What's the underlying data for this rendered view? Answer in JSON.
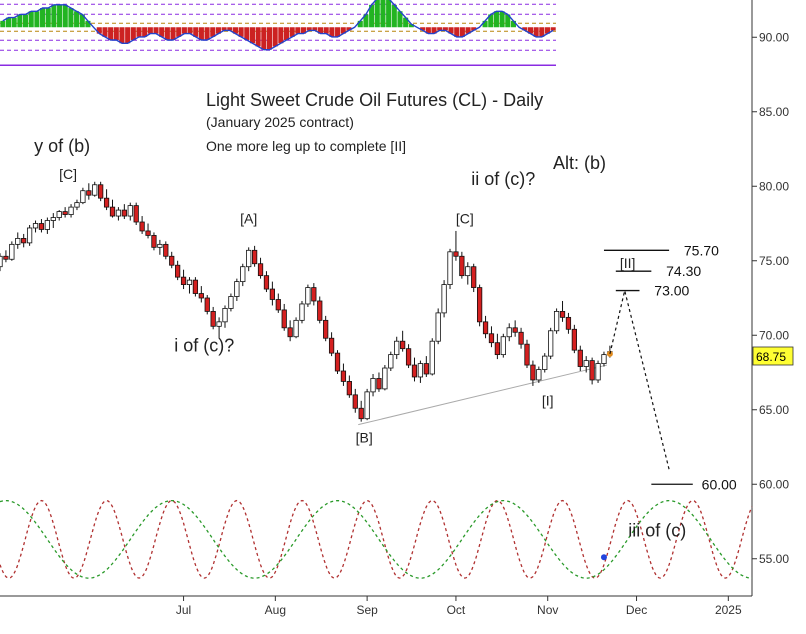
{
  "chart_data": {
    "type": "candlestick",
    "title": "Light Sweet Crude Oil Futures (CL) - Daily",
    "subtitle": "(January 2025 contract)",
    "note": "One more leg up to complete [II]",
    "alt_label": "Alt: (b)",
    "price_label": "68.75",
    "y_ticks": [
      "90.00",
      "85.00",
      "80.00",
      "75.00",
      "70.00",
      "65.00",
      "60.00",
      "55.00"
    ],
    "y_tick_values": [
      90,
      85,
      80,
      75,
      70,
      65,
      60,
      55
    ],
    "x_ticks": [
      "Jul",
      "Aug",
      "Sep",
      "Oct",
      "Nov",
      "Dec",
      "2025"
    ],
    "x_tick_days": [
      4,
      35,
      66,
      96,
      127,
      157,
      188
    ],
    "ylim": [
      52.5,
      92.5
    ],
    "day_range": [
      -58,
      196
    ],
    "price_points": [
      [
        -58,
        75.2
      ],
      [
        -52,
        76.0
      ],
      [
        -46,
        77.0
      ],
      [
        -40,
        77.8
      ],
      [
        -34,
        78.2
      ],
      [
        -28,
        78.8
      ],
      [
        -25,
        79.6
      ],
      [
        -22,
        80.0
      ],
      [
        -19,
        79.0
      ],
      [
        -16,
        78.3
      ],
      [
        -13,
        78.5
      ],
      [
        -10,
        77.6
      ],
      [
        -7,
        76.5
      ],
      [
        -4,
        75.6
      ],
      [
        -1,
        75.3
      ],
      [
        2,
        74.3
      ],
      [
        5,
        73.6
      ],
      [
        8,
        72.9
      ],
      [
        11,
        72.4
      ],
      [
        14,
        71.1
      ],
      [
        17,
        70.5
      ],
      [
        19,
        71.4
      ],
      [
        21,
        72.6
      ],
      [
        23,
        73.7
      ],
      [
        25,
        74.9
      ],
      [
        27,
        75.6
      ],
      [
        29,
        74.7
      ],
      [
        31,
        73.6
      ],
      [
        33,
        72.3
      ],
      [
        35,
        71.9
      ],
      [
        38,
        70.5
      ],
      [
        40,
        69.5
      ],
      [
        42,
        70.6
      ],
      [
        44,
        71.9
      ],
      [
        46,
        72.9
      ],
      [
        48,
        72.1
      ],
      [
        50,
        71.0
      ],
      [
        52,
        69.6
      ],
      [
        54,
        68.6
      ],
      [
        56,
        67.5
      ],
      [
        58,
        66.6
      ],
      [
        60,
        66.0
      ],
      [
        62,
        65.0
      ],
      [
        64,
        64.3
      ],
      [
        66,
        66.0
      ],
      [
        68,
        67.0
      ],
      [
        70,
        66.6
      ],
      [
        72,
        67.6
      ],
      [
        74,
        68.5
      ],
      [
        76,
        69.3
      ],
      [
        78,
        69.8
      ],
      [
        80,
        69.2
      ],
      [
        82,
        68.0
      ],
      [
        84,
        67.4
      ],
      [
        86,
        67.8
      ],
      [
        88,
        68.3
      ],
      [
        90,
        70.5
      ],
      [
        92,
        72.9
      ],
      [
        94,
        75.2
      ],
      [
        96,
        76.0
      ],
      [
        98,
        74.1
      ],
      [
        100,
        73.6
      ],
      [
        102,
        72.4
      ],
      [
        104,
        70.5
      ],
      [
        106,
        70.2
      ],
      [
        108,
        69.4
      ],
      [
        110,
        68.7
      ],
      [
        112,
        69.8
      ],
      [
        114,
        70.4
      ],
      [
        116,
        70.2
      ],
      [
        118,
        69.5
      ],
      [
        120,
        68.0
      ],
      [
        122,
        67.2
      ],
      [
        124,
        67.6
      ],
      [
        126,
        68.4
      ],
      [
        128,
        70.3
      ],
      [
        130,
        71.6
      ],
      [
        132,
        71.1
      ],
      [
        134,
        70.6
      ],
      [
        136,
        69.3
      ],
      [
        138,
        67.8
      ],
      [
        140,
        68.3
      ],
      [
        142,
        67.0
      ],
      [
        144,
        68.0
      ],
      [
        146,
        68.6
      ],
      [
        148,
        68.9
      ],
      [
        150,
        69.3
      ],
      [
        152,
        70.1
      ],
      [
        154,
        71.5
      ],
      [
        156,
        72.8
      ],
      [
        159,
        71.2
      ],
      [
        162,
        69.0
      ],
      [
        165,
        66.2
      ],
      [
        168,
        63.5
      ],
      [
        171,
        61.0
      ]
    ],
    "candles": [
      [
        -58,
        74.6,
        75.5,
        74.3,
        75.3
      ],
      [
        -56,
        75.3,
        75.7,
        74.9,
        75.1
      ],
      [
        -54,
        75.1,
        76.3,
        75.0,
        76.1
      ],
      [
        -52,
        76.1,
        76.9,
        75.8,
        76.5
      ],
      [
        -50,
        76.5,
        76.8,
        75.9,
        76.2
      ],
      [
        -48,
        76.2,
        77.4,
        76.0,
        77.2
      ],
      [
        -46,
        77.2,
        77.7,
        76.9,
        77.5
      ],
      [
        -44,
        77.5,
        77.8,
        76.9,
        77.1
      ],
      [
        -42,
        77.1,
        77.9,
        76.8,
        77.7
      ],
      [
        -40,
        77.7,
        78.2,
        77.2,
        77.9
      ],
      [
        -38,
        77.9,
        78.4,
        77.7,
        78.3
      ],
      [
        -36,
        78.3,
        78.6,
        77.9,
        78.1
      ],
      [
        -34,
        78.1,
        78.8,
        77.9,
        78.6
      ],
      [
        -32,
        78.6,
        79.1,
        78.4,
        78.9
      ],
      [
        -30,
        78.9,
        79.9,
        78.8,
        79.7
      ],
      [
        -28,
        79.7,
        80.2,
        79.1,
        79.4
      ],
      [
        -26,
        79.4,
        80.3,
        79.3,
        80.1
      ],
      [
        -24,
        80.1,
        80.3,
        79.0,
        79.2
      ],
      [
        -22,
        79.2,
        79.8,
        78.4,
        78.6
      ],
      [
        -20,
        78.6,
        79.1,
        77.9,
        78.0
      ],
      [
        -18,
        78.0,
        78.6,
        77.7,
        78.4
      ],
      [
        -16,
        78.4,
        78.8,
        77.8,
        78.0
      ],
      [
        -14,
        78.0,
        78.9,
        77.7,
        78.7
      ],
      [
        -12,
        78.7,
        78.9,
        77.4,
        77.6
      ],
      [
        -10,
        77.6,
        78.0,
        76.8,
        77.0
      ],
      [
        -8,
        77.0,
        77.5,
        76.5,
        76.7
      ],
      [
        -6,
        76.7,
        76.9,
        75.7,
        75.9
      ],
      [
        -4,
        75.9,
        76.4,
        75.4,
        76.1
      ],
      [
        -2,
        76.1,
        76.3,
        75.1,
        75.3
      ],
      [
        0,
        75.3,
        75.6,
        74.5,
        74.7
      ],
      [
        2,
        74.7,
        75.0,
        73.7,
        73.9
      ],
      [
        4,
        73.9,
        74.4,
        73.1,
        73.4
      ],
      [
        6,
        73.4,
        73.9,
        72.8,
        73.7
      ],
      [
        8,
        73.7,
        73.9,
        72.6,
        72.8
      ],
      [
        10,
        72.8,
        73.3,
        72.2,
        72.5
      ],
      [
        12,
        72.5,
        72.7,
        71.4,
        71.6
      ],
      [
        14,
        71.6,
        71.9,
        70.4,
        70.6
      ],
      [
        16,
        70.6,
        71.2,
        69.8,
        70.9
      ],
      [
        18,
        70.9,
        72.0,
        70.5,
        71.8
      ],
      [
        20,
        71.8,
        72.8,
        71.6,
        72.6
      ],
      [
        22,
        72.6,
        73.8,
        72.3,
        73.6
      ],
      [
        24,
        73.6,
        74.8,
        73.3,
        74.6
      ],
      [
        26,
        74.6,
        75.9,
        74.3,
        75.7
      ],
      [
        28,
        75.7,
        76.0,
        74.6,
        74.8
      ],
      [
        30,
        74.8,
        75.2,
        73.8,
        74.0
      ],
      [
        32,
        74.0,
        74.3,
        72.9,
        73.1
      ],
      [
        34,
        73.1,
        73.6,
        72.0,
        72.4
      ],
      [
        36,
        72.4,
        72.8,
        71.5,
        71.7
      ],
      [
        38,
        71.7,
        72.1,
        70.3,
        70.5
      ],
      [
        40,
        70.5,
        71.0,
        69.6,
        69.9
      ],
      [
        42,
        69.9,
        71.2,
        69.8,
        71.0
      ],
      [
        44,
        71.0,
        72.3,
        70.8,
        72.1
      ],
      [
        46,
        72.1,
        73.4,
        71.9,
        73.2
      ],
      [
        48,
        73.2,
        73.5,
        72.0,
        72.3
      ],
      [
        50,
        72.3,
        72.6,
        70.8,
        71.0
      ],
      [
        52,
        71.0,
        71.3,
        69.6,
        69.8
      ],
      [
        54,
        69.8,
        70.2,
        68.6,
        68.8
      ],
      [
        56,
        68.8,
        69.0,
        67.4,
        67.6
      ],
      [
        58,
        67.6,
        68.1,
        66.6,
        66.9
      ],
      [
        60,
        66.9,
        67.3,
        65.8,
        66.0
      ],
      [
        62,
        66.0,
        66.4,
        64.8,
        65.1
      ],
      [
        64,
        65.1,
        65.6,
        64.2,
        64.4
      ],
      [
        66,
        64.4,
        66.4,
        64.3,
        66.2
      ],
      [
        68,
        66.2,
        67.4,
        65.9,
        67.1
      ],
      [
        70,
        67.1,
        67.5,
        66.2,
        66.4
      ],
      [
        72,
        66.4,
        68.0,
        66.3,
        67.8
      ],
      [
        74,
        67.8,
        68.9,
        67.6,
        68.7
      ],
      [
        76,
        68.7,
        69.9,
        68.4,
        69.6
      ],
      [
        78,
        69.6,
        70.3,
        68.9,
        69.1
      ],
      [
        80,
        69.1,
        69.4,
        67.8,
        68.0
      ],
      [
        82,
        68.0,
        68.5,
        66.9,
        67.2
      ],
      [
        84,
        67.2,
        68.3,
        66.8,
        68.1
      ],
      [
        86,
        68.1,
        68.6,
        67.2,
        67.4
      ],
      [
        88,
        67.4,
        69.8,
        67.3,
        69.6
      ],
      [
        90,
        69.6,
        71.8,
        69.4,
        71.5
      ],
      [
        92,
        71.5,
        73.7,
        71.2,
        73.4
      ],
      [
        94,
        73.4,
        75.8,
        73.1,
        75.6
      ],
      [
        96,
        75.6,
        77.0,
        75.0,
        75.3
      ],
      [
        98,
        75.3,
        75.6,
        73.8,
        74.0
      ],
      [
        100,
        74.0,
        74.9,
        73.4,
        74.6
      ],
      [
        102,
        74.6,
        74.8,
        72.9,
        73.2
      ],
      [
        104,
        73.2,
        73.4,
        70.6,
        70.9
      ],
      [
        106,
        70.9,
        71.3,
        69.8,
        70.1
      ],
      [
        108,
        70.1,
        70.6,
        69.2,
        69.5
      ],
      [
        110,
        69.5,
        70.1,
        68.4,
        68.7
      ],
      [
        112,
        68.7,
        70.1,
        68.5,
        69.9
      ],
      [
        114,
        69.9,
        70.8,
        69.6,
        70.5
      ],
      [
        116,
        70.5,
        71.0,
        69.9,
        70.2
      ],
      [
        118,
        70.2,
        70.5,
        69.1,
        69.4
      ],
      [
        120,
        69.4,
        69.7,
        67.8,
        68.0
      ],
      [
        122,
        68.0,
        68.3,
        66.6,
        67.0
      ],
      [
        124,
        67.0,
        67.9,
        66.8,
        67.7
      ],
      [
        126,
        67.7,
        68.8,
        67.5,
        68.6
      ],
      [
        128,
        68.6,
        70.5,
        68.4,
        70.3
      ],
      [
        130,
        70.3,
        71.8,
        70.1,
        71.6
      ],
      [
        132,
        71.6,
        72.3,
        70.9,
        71.2
      ],
      [
        134,
        71.2,
        71.5,
        70.1,
        70.4
      ],
      [
        136,
        70.4,
        70.7,
        68.8,
        69.0
      ],
      [
        138,
        69.0,
        69.3,
        67.6,
        67.9
      ],
      [
        140,
        67.9,
        68.6,
        67.5,
        68.3
      ],
      [
        142,
        68.3,
        68.5,
        66.7,
        67.0
      ],
      [
        144,
        67.0,
        68.3,
        66.8,
        68.1
      ],
      [
        146,
        68.1,
        68.9,
        67.9,
        68.7
      ],
      [
        148,
        68.7,
        69.3,
        68.5,
        68.9
      ]
    ],
    "support_line": [
      [
        63,
        64.0
      ],
      [
        147,
        68.0
      ]
    ],
    "projection": [
      [
        148,
        68.75
      ],
      [
        153,
        73.0
      ],
      [
        168,
        61.0
      ]
    ],
    "levels": [
      {
        "label": "75.70",
        "value": 75.7,
        "from": 146,
        "to": 168,
        "label_day": 173
      },
      {
        "label": "74.30",
        "value": 74.3,
        "from": 150,
        "to": 162,
        "label_day": 167
      },
      {
        "label": "73.00",
        "value": 73.0,
        "from": 150,
        "to": 158,
        "label_day": 163
      },
      {
        "label": "60.00",
        "value": 60.0,
        "from": 162,
        "to": 176,
        "label_day": 179
      }
    ],
    "annotations": [
      {
        "text": "y of (b)",
        "day": -37,
        "value": 82.3,
        "cls": "t-wave"
      },
      {
        "text": "[C]",
        "day": -35,
        "value": 80.5,
        "cls": "t-brk"
      },
      {
        "text": "[A]",
        "day": 26,
        "value": 77.5,
        "cls": "t-brk"
      },
      {
        "text": "i of (c)?",
        "day": 11,
        "value": 68.9,
        "cls": "t-wave"
      },
      {
        "text": "ii of (c)?",
        "day": 112,
        "value": 80.1,
        "cls": "t-wave"
      },
      {
        "text": "[C]",
        "day": 99,
        "value": 77.5,
        "cls": "t-brk"
      },
      {
        "text": "[B]",
        "day": 65,
        "value": 62.8,
        "cls": "t-brk"
      },
      {
        "text": "[I]",
        "day": 127,
        "value": 65.3,
        "cls": "t-brk"
      },
      {
        "text": "[II]",
        "day": 154,
        "value": 74.5,
        "cls": "t-brk"
      },
      {
        "text": "iii of (c)",
        "day": 164,
        "value": 56.5,
        "cls": "t-wave"
      }
    ],
    "oscillator": {
      "axis_value": 90,
      "histogram": [
        2,
        3,
        3,
        4,
        4,
        5,
        5,
        6,
        6,
        7,
        7,
        7,
        6,
        5,
        4,
        2,
        0,
        -2,
        -3,
        -4,
        -4,
        -5,
        -5,
        -4,
        -3,
        -3,
        -2,
        -2,
        -3,
        -4,
        -4,
        -3,
        -2,
        -2,
        -3,
        -4,
        -4,
        -3,
        -2,
        -1,
        -1,
        -2,
        -3,
        -4,
        -5,
        -6,
        -7,
        -7,
        -6,
        -5,
        -4,
        -3,
        -2,
        -2,
        -1,
        -1,
        -2,
        -2,
        -3,
        -3,
        -2,
        -1,
        0,
        2,
        4,
        7,
        9,
        10,
        9,
        7,
        5,
        3,
        1,
        0,
        -1,
        -2,
        -2,
        -1,
        -1,
        -2,
        -3,
        -3,
        -2,
        -1,
        0,
        2,
        4,
        5,
        5,
        4,
        2,
        0,
        -1,
        -2,
        -3,
        -3,
        -2,
        -1
      ]
    },
    "cycles": {
      "red_period_days": 22,
      "green_period_days": 56,
      "center_value": 56.3,
      "amplitude": 2.6
    }
  }
}
